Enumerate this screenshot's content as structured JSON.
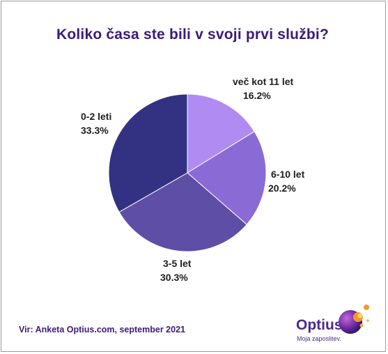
{
  "chart_data": {
    "type": "pie",
    "title": "Koliko časa ste bili v svoji prvi službi?",
    "slices": [
      {
        "label": "več kot 11 let",
        "value": 16.2,
        "value_text": "16.2%",
        "color": "#b08cf2"
      },
      {
        "label": "6-10 let",
        "value": 20.2,
        "value_text": "20.2%",
        "color": "#8a6bd6"
      },
      {
        "label": "3-5 let",
        "value": 30.3,
        "value_text": "30.3%",
        "color": "#5f4ea6"
      },
      {
        "label": "0-2 leti",
        "value": 33.3,
        "value_text": "33.3%",
        "color": "#333282"
      }
    ],
    "start": "12 o'clock",
    "direction": "clockwise"
  },
  "footer": {
    "source": "Vir: Anketa Optius.com, september 2021",
    "brand": "Optius",
    "tagline": "Moja zaposlitev."
  },
  "colors": {
    "title": "#3c1a78",
    "brand": "#4b2a8a"
  }
}
